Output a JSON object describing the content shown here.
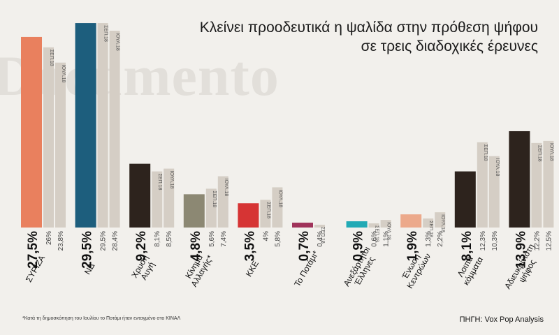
{
  "title": "Κλείνει προοδευτικά η ψαλίδα στην πρόθεση ψήφου σε τρεις διαδοχικές έρευνες",
  "title_lines": [
    "Κλείνει προοδευτικά η ψαλίδα στην πρόθεση ψήφου",
    "σε τρεις διαδοχικές έρευνες"
  ],
  "watermark": "Documento",
  "footnote": "*Κατά τη δημοσκόπηση του Ιουλίου το Ποτάμι ήταν ενταγμένο στο ΚΙΝΑΛ",
  "source": "ΠΗΓΗ: Vox Pop Analysis",
  "chart_data": {
    "type": "bar",
    "ylim": [
      0,
      30
    ],
    "grid": false,
    "series": [
      {
        "name": "",
        "role": "current"
      },
      {
        "name": "ΣΕΠ.18",
        "role": "previous"
      },
      {
        "name": "ΙΟΥΛ.18",
        "role": "earlier"
      }
    ],
    "groups": [
      {
        "category": [
          "ΣΥΡΙΖΑ"
        ],
        "color": "#e9805e",
        "current": 27.5,
        "previous": 26,
        "earlier": 23.8,
        "current_label": "27,5%",
        "previous_label": "26%",
        "earlier_label": "23,8%"
      },
      {
        "category": [
          "ΝΔ"
        ],
        "color": "#1d5e7d",
        "current": 29.5,
        "previous": 29.5,
        "earlier": 28.4,
        "current_label": "29,5%",
        "previous_label": "29,5%",
        "earlier_label": "28,4%"
      },
      {
        "category": [
          "Χρυσή",
          "Αυγή"
        ],
        "color": "#2d231d",
        "current": 9.2,
        "previous": 8.1,
        "earlier": 8.5,
        "current_label": "9,2%",
        "previous_label": "8,1%",
        "earlier_label": "8,5%"
      },
      {
        "category": [
          "Κίνημα",
          "Αλλαγής*"
        ],
        "color": "#8c8873",
        "current": 4.8,
        "previous": 5.6,
        "earlier": 7.4,
        "current_label": "4,8%",
        "previous_label": "5,6%",
        "earlier_label": "7,4%"
      },
      {
        "category": [
          "ΚΚΕ"
        ],
        "color": "#d63434",
        "current": 3.5,
        "previous": 4,
        "earlier": 5.8,
        "current_label": "3,5%",
        "previous_label": "4%",
        "earlier_label": "5,8%"
      },
      {
        "category": [
          "Το Ποτάμι*"
        ],
        "color": "#a0335a",
        "current": 0.7,
        "previous": 0.4,
        "earlier": null,
        "current_label": "0,7%",
        "previous_label": "0,4%",
        "earlier_label": ""
      },
      {
        "category": [
          "Ανεξάρτητοι",
          "Έλληνες"
        ],
        "color": "#22aab5",
        "current": 0.9,
        "previous": 0.6,
        "earlier": 1.1,
        "current_label": "0,9%",
        "previous_label": "0,6%",
        "earlier_label": "1,1%"
      },
      {
        "category": [
          "Ένωση",
          "Κεντρώων"
        ],
        "color": "#eca98b",
        "current": 1.9,
        "previous": 1.3,
        "earlier": 2.2,
        "current_label": "1,9%",
        "previous_label": "1,3%",
        "earlier_label": "2,2%"
      },
      {
        "category": [
          "Λοιπά",
          "κόμματα"
        ],
        "color": "#2d231d",
        "current": 8.1,
        "previous": 12.3,
        "earlier": 10.3,
        "current_label": "8,1%",
        "previous_label": "12,3%",
        "earlier_label": "10,3%"
      },
      {
        "category": [
          "Αδιευκρίνιστη",
          "ψήφος"
        ],
        "color": "#2d231d",
        "current": 13.9,
        "previous": 12.2,
        "earlier": 12.5,
        "current_label": "13,9%",
        "previous_label": "12,2%",
        "earlier_label": "12,5%"
      }
    ],
    "gray_colors": {
      "previous": "#d5cec5",
      "earlier": "#d5cec5"
    }
  }
}
